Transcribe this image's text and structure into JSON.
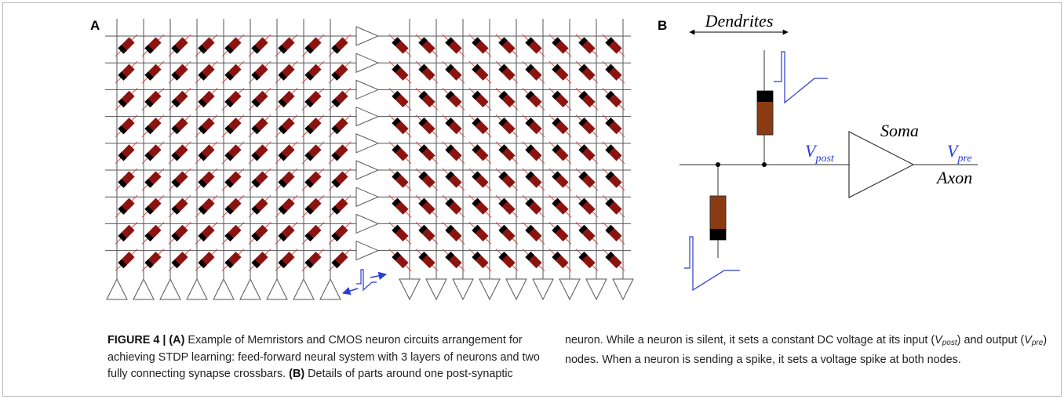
{
  "panel_a": {
    "label": "A",
    "rows": 9,
    "left_cols": 9,
    "right_cols": 9
  },
  "panel_b": {
    "label": "B",
    "dendrites": "Dendrites",
    "soma": "Soma",
    "axon": "Axon",
    "v_post_main": "V",
    "v_post_sub": "post",
    "v_pre_main": "V",
    "v_pre_sub": "pre"
  },
  "caption": {
    "fig_label": "FIGURE 4 | ",
    "a_label": "(A)",
    "a_text": " Example of Memristors and CMOS neuron circuits arrangement for achieving STDP learning: feed-forward neural system with 3 layers of neurons and two fully connecting synapse crossbars. ",
    "b_label": "(B)",
    "b_text_1": " Details of parts around one post-synaptic neuron. While a neuron is silent, it sets a constant DC voltage at its input (",
    "b_sub_post_main": "V",
    "b_sub_post": "post",
    "b_text_2": ") and output (",
    "b_sub_pre_main": "V",
    "b_sub_pre": "pre",
    "b_text_3": ") nodes. When a neuron is sending a spike, it sets a voltage spike at both nodes."
  },
  "colors": {
    "wire": "#555555",
    "memristor_body": "#8b1410",
    "memristor_cap": "#000000",
    "diag": "#c8504a",
    "spike": "#2b3bd6",
    "soma_body": "#8a3b12"
  }
}
